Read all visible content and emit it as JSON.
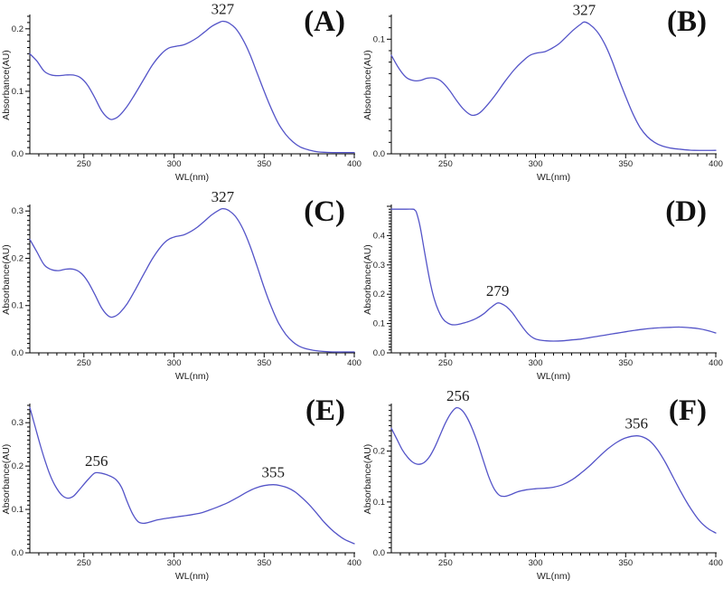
{
  "figure": {
    "background": "#ffffff",
    "curve_color": "#5454c8",
    "axis_color": "#000000",
    "text_color": "#222222"
  },
  "chart_data": [
    {
      "type": "line",
      "panel_label": "(A)",
      "xlabel": "WL(nm)",
      "ylabel": "Absorbance(AU)",
      "xlim": [
        220,
        400
      ],
      "ylim": [
        0,
        0.22
      ],
      "x_major_ticks": [
        250,
        300,
        350,
        400
      ],
      "x_minor_step": 5,
      "y_minor_step": 0.01,
      "y_tick_labels": [
        "0.0",
        "0.1",
        "0.2"
      ],
      "legend": "none",
      "grid": false,
      "annotations": [
        {
          "x": 327,
          "y": 0.212,
          "label": "327"
        }
      ],
      "points": [
        [
          220,
          0.16
        ],
        [
          224,
          0.148
        ],
        [
          228,
          0.132
        ],
        [
          232,
          0.126
        ],
        [
          236,
          0.125
        ],
        [
          240,
          0.126
        ],
        [
          244,
          0.126
        ],
        [
          248,
          0.122
        ],
        [
          252,
          0.11
        ],
        [
          256,
          0.09
        ],
        [
          260,
          0.068
        ],
        [
          264,
          0.056
        ],
        [
          267,
          0.056
        ],
        [
          270,
          0.062
        ],
        [
          274,
          0.076
        ],
        [
          278,
          0.094
        ],
        [
          283,
          0.118
        ],
        [
          288,
          0.142
        ],
        [
          293,
          0.16
        ],
        [
          297,
          0.169
        ],
        [
          301,
          0.172
        ],
        [
          305,
          0.174
        ],
        [
          309,
          0.179
        ],
        [
          313,
          0.186
        ],
        [
          317,
          0.195
        ],
        [
          321,
          0.204
        ],
        [
          325,
          0.21
        ],
        [
          327,
          0.212
        ],
        [
          330,
          0.21
        ],
        [
          334,
          0.201
        ],
        [
          338,
          0.184
        ],
        [
          342,
          0.16
        ],
        [
          346,
          0.13
        ],
        [
          350,
          0.1
        ],
        [
          354,
          0.072
        ],
        [
          358,
          0.048
        ],
        [
          362,
          0.031
        ],
        [
          366,
          0.019
        ],
        [
          370,
          0.011
        ],
        [
          375,
          0.006
        ],
        [
          380,
          0.003
        ],
        [
          388,
          0.002
        ],
        [
          400,
          0.002
        ]
      ]
    },
    {
      "type": "line",
      "panel_label": "(B)",
      "xlabel": "WL(nm)",
      "ylabel": "Absorbance(AU)",
      "xlim": [
        220,
        400
      ],
      "ylim": [
        0,
        0.12
      ],
      "x_major_ticks": [
        250,
        300,
        350,
        400
      ],
      "x_minor_step": 5,
      "y_minor_step": 0.01,
      "y_tick_labels": [
        "0.0",
        "0.1"
      ],
      "legend": "none",
      "grid": false,
      "annotations": [
        {
          "x": 327,
          "y": 0.115,
          "label": "327"
        }
      ],
      "points": [
        [
          220,
          0.086
        ],
        [
          224,
          0.075
        ],
        [
          228,
          0.067
        ],
        [
          232,
          0.064
        ],
        [
          236,
          0.064
        ],
        [
          240,
          0.066
        ],
        [
          244,
          0.066
        ],
        [
          248,
          0.063
        ],
        [
          252,
          0.056
        ],
        [
          256,
          0.047
        ],
        [
          260,
          0.039
        ],
        [
          264,
          0.034
        ],
        [
          267,
          0.034
        ],
        [
          270,
          0.037
        ],
        [
          274,
          0.044
        ],
        [
          278,
          0.052
        ],
        [
          283,
          0.063
        ],
        [
          288,
          0.073
        ],
        [
          293,
          0.081
        ],
        [
          297,
          0.086
        ],
        [
          301,
          0.088
        ],
        [
          305,
          0.089
        ],
        [
          309,
          0.092
        ],
        [
          313,
          0.096
        ],
        [
          317,
          0.102
        ],
        [
          321,
          0.108
        ],
        [
          325,
          0.113
        ],
        [
          327,
          0.115
        ],
        [
          330,
          0.113
        ],
        [
          334,
          0.107
        ],
        [
          338,
          0.097
        ],
        [
          342,
          0.083
        ],
        [
          346,
          0.066
        ],
        [
          350,
          0.05
        ],
        [
          354,
          0.035
        ],
        [
          358,
          0.023
        ],
        [
          362,
          0.015
        ],
        [
          366,
          0.01
        ],
        [
          370,
          0.007
        ],
        [
          375,
          0.005
        ],
        [
          380,
          0.004
        ],
        [
          388,
          0.003
        ],
        [
          400,
          0.003
        ]
      ]
    },
    {
      "type": "line",
      "panel_label": "(C)",
      "xlabel": "WL(nm)",
      "ylabel": "Absorbance(AU)",
      "xlim": [
        220,
        400
      ],
      "ylim": [
        0,
        0.31
      ],
      "x_major_ticks": [
        250,
        300,
        350,
        400
      ],
      "x_minor_step": 5,
      "y_minor_step": 0.01,
      "y_tick_labels": [
        "0.0",
        "0.1",
        "0.2",
        "0.3"
      ],
      "legend": "none",
      "grid": false,
      "annotations": [
        {
          "x": 327,
          "y": 0.305,
          "label": "327"
        }
      ],
      "points": [
        [
          220,
          0.24
        ],
        [
          224,
          0.213
        ],
        [
          228,
          0.186
        ],
        [
          232,
          0.176
        ],
        [
          236,
          0.174
        ],
        [
          240,
          0.177
        ],
        [
          244,
          0.177
        ],
        [
          248,
          0.17
        ],
        [
          252,
          0.152
        ],
        [
          256,
          0.124
        ],
        [
          260,
          0.094
        ],
        [
          264,
          0.077
        ],
        [
          267,
          0.077
        ],
        [
          270,
          0.085
        ],
        [
          274,
          0.104
        ],
        [
          278,
          0.13
        ],
        [
          283,
          0.165
        ],
        [
          288,
          0.199
        ],
        [
          293,
          0.226
        ],
        [
          297,
          0.24
        ],
        [
          301,
          0.246
        ],
        [
          305,
          0.249
        ],
        [
          309,
          0.256
        ],
        [
          313,
          0.266
        ],
        [
          317,
          0.279
        ],
        [
          321,
          0.292
        ],
        [
          325,
          0.302
        ],
        [
          327,
          0.305
        ],
        [
          330,
          0.302
        ],
        [
          334,
          0.289
        ],
        [
          338,
          0.264
        ],
        [
          342,
          0.228
        ],
        [
          346,
          0.184
        ],
        [
          350,
          0.138
        ],
        [
          354,
          0.097
        ],
        [
          358,
          0.063
        ],
        [
          362,
          0.039
        ],
        [
          366,
          0.023
        ],
        [
          370,
          0.013
        ],
        [
          375,
          0.007
        ],
        [
          380,
          0.004
        ],
        [
          388,
          0.002
        ],
        [
          400,
          0.002
        ]
      ]
    },
    {
      "type": "line",
      "panel_label": "(D)",
      "xlabel": "WL(nm)",
      "ylabel": "Absorbance(AU)",
      "xlim": [
        220,
        400
      ],
      "ylim": [
        0,
        0.5
      ],
      "x_major_ticks": [
        250,
        300,
        350,
        400
      ],
      "x_minor_step": 5,
      "y_minor_step": 0.01,
      "y_tick_labels": [
        "0.0",
        "0.1",
        "0.2",
        "0.3",
        "0.4"
      ],
      "legend": "none",
      "grid": false,
      "annotations": [
        {
          "x": 279,
          "y": 0.17,
          "label": "279"
        }
      ],
      "points": [
        [
          220,
          0.49
        ],
        [
          226,
          0.49
        ],
        [
          232,
          0.49
        ],
        [
          233,
          0.487
        ],
        [
          234,
          0.478
        ],
        [
          236,
          0.43
        ],
        [
          238,
          0.36
        ],
        [
          240,
          0.29
        ],
        [
          242,
          0.228
        ],
        [
          244,
          0.18
        ],
        [
          246,
          0.146
        ],
        [
          248,
          0.122
        ],
        [
          250,
          0.107
        ],
        [
          253,
          0.097
        ],
        [
          256,
          0.096
        ],
        [
          259,
          0.1
        ],
        [
          263,
          0.107
        ],
        [
          267,
          0.117
        ],
        [
          271,
          0.132
        ],
        [
          274,
          0.148
        ],
        [
          277,
          0.163
        ],
        [
          279,
          0.17
        ],
        [
          281,
          0.168
        ],
        [
          284,
          0.157
        ],
        [
          287,
          0.138
        ],
        [
          290,
          0.112
        ],
        [
          293,
          0.086
        ],
        [
          296,
          0.064
        ],
        [
          299,
          0.05
        ],
        [
          302,
          0.044
        ],
        [
          306,
          0.041
        ],
        [
          310,
          0.04
        ],
        [
          315,
          0.041
        ],
        [
          320,
          0.044
        ],
        [
          325,
          0.047
        ],
        [
          330,
          0.052
        ],
        [
          335,
          0.057
        ],
        [
          340,
          0.062
        ],
        [
          345,
          0.067
        ],
        [
          350,
          0.072
        ],
        [
          355,
          0.077
        ],
        [
          360,
          0.081
        ],
        [
          365,
          0.084
        ],
        [
          370,
          0.086
        ],
        [
          375,
          0.087
        ],
        [
          380,
          0.088
        ],
        [
          385,
          0.086
        ],
        [
          390,
          0.083
        ],
        [
          395,
          0.077
        ],
        [
          400,
          0.068
        ]
      ]
    },
    {
      "type": "line",
      "panel_label": "(E)",
      "xlabel": "WL(nm)",
      "ylabel": "Absorbance(AU)",
      "xlim": [
        220,
        400
      ],
      "ylim": [
        0,
        0.34
      ],
      "x_major_ticks": [
        250,
        300,
        350,
        400
      ],
      "x_minor_step": 5,
      "y_minor_step": 0.01,
      "y_tick_labels": [
        "0.0",
        "0.1",
        "0.2",
        "0.3"
      ],
      "legend": "none",
      "grid": false,
      "annotations": [
        {
          "x": 257,
          "y": 0.184,
          "label": "256"
        },
        {
          "x": 355,
          "y": 0.157,
          "label": "355"
        }
      ],
      "points": [
        [
          220,
          0.335
        ],
        [
          223,
          0.29
        ],
        [
          226,
          0.245
        ],
        [
          229,
          0.205
        ],
        [
          232,
          0.172
        ],
        [
          235,
          0.148
        ],
        [
          238,
          0.132
        ],
        [
          241,
          0.126
        ],
        [
          244,
          0.13
        ],
        [
          247,
          0.143
        ],
        [
          250,
          0.158
        ],
        [
          253,
          0.172
        ],
        [
          256,
          0.184
        ],
        [
          259,
          0.184
        ],
        [
          262,
          0.181
        ],
        [
          265,
          0.176
        ],
        [
          268,
          0.168
        ],
        [
          271,
          0.15
        ],
        [
          274,
          0.118
        ],
        [
          277,
          0.09
        ],
        [
          280,
          0.072
        ],
        [
          283,
          0.068
        ],
        [
          286,
          0.07
        ],
        [
          290,
          0.075
        ],
        [
          295,
          0.079
        ],
        [
          300,
          0.082
        ],
        [
          305,
          0.085
        ],
        [
          310,
          0.088
        ],
        [
          315,
          0.092
        ],
        [
          320,
          0.099
        ],
        [
          325,
          0.107
        ],
        [
          330,
          0.116
        ],
        [
          335,
          0.127
        ],
        [
          340,
          0.139
        ],
        [
          345,
          0.149
        ],
        [
          350,
          0.155
        ],
        [
          355,
          0.157
        ],
        [
          359,
          0.155
        ],
        [
          363,
          0.15
        ],
        [
          367,
          0.141
        ],
        [
          371,
          0.127
        ],
        [
          375,
          0.111
        ],
        [
          379,
          0.092
        ],
        [
          383,
          0.072
        ],
        [
          387,
          0.055
        ],
        [
          391,
          0.041
        ],
        [
          395,
          0.03
        ],
        [
          400,
          0.021
        ]
      ]
    },
    {
      "type": "line",
      "panel_label": "(F)",
      "xlabel": "WL(nm)",
      "ylabel": "Absorbance(AU)",
      "xlim": [
        220,
        400
      ],
      "ylim": [
        0,
        0.29
      ],
      "x_major_ticks": [
        250,
        300,
        350,
        400
      ],
      "x_minor_step": 5,
      "y_minor_step": 0.01,
      "y_tick_labels": [
        "0.0",
        "0.1",
        "0.2"
      ],
      "legend": "none",
      "grid": false,
      "annotations": [
        {
          "x": 257,
          "y": 0.285,
          "label": "256"
        },
        {
          "x": 356,
          "y": 0.23,
          "label": "356"
        }
      ],
      "points": [
        [
          220,
          0.245
        ],
        [
          223,
          0.224
        ],
        [
          226,
          0.203
        ],
        [
          229,
          0.188
        ],
        [
          232,
          0.178
        ],
        [
          235,
          0.174
        ],
        [
          238,
          0.177
        ],
        [
          241,
          0.188
        ],
        [
          244,
          0.207
        ],
        [
          247,
          0.231
        ],
        [
          250,
          0.255
        ],
        [
          253,
          0.274
        ],
        [
          256,
          0.285
        ],
        [
          259,
          0.281
        ],
        [
          262,
          0.266
        ],
        [
          265,
          0.243
        ],
        [
          268,
          0.215
        ],
        [
          271,
          0.182
        ],
        [
          274,
          0.15
        ],
        [
          277,
          0.126
        ],
        [
          280,
          0.113
        ],
        [
          283,
          0.111
        ],
        [
          286,
          0.114
        ],
        [
          290,
          0.12
        ],
        [
          295,
          0.124
        ],
        [
          300,
          0.126
        ],
        [
          305,
          0.127
        ],
        [
          310,
          0.129
        ],
        [
          315,
          0.134
        ],
        [
          320,
          0.143
        ],
        [
          325,
          0.156
        ],
        [
          330,
          0.171
        ],
        [
          335,
          0.188
        ],
        [
          340,
          0.204
        ],
        [
          345,
          0.217
        ],
        [
          350,
          0.226
        ],
        [
          356,
          0.23
        ],
        [
          360,
          0.227
        ],
        [
          364,
          0.218
        ],
        [
          368,
          0.201
        ],
        [
          372,
          0.178
        ],
        [
          376,
          0.151
        ],
        [
          380,
          0.124
        ],
        [
          384,
          0.099
        ],
        [
          388,
          0.077
        ],
        [
          392,
          0.059
        ],
        [
          396,
          0.047
        ],
        [
          400,
          0.039
        ]
      ]
    }
  ]
}
